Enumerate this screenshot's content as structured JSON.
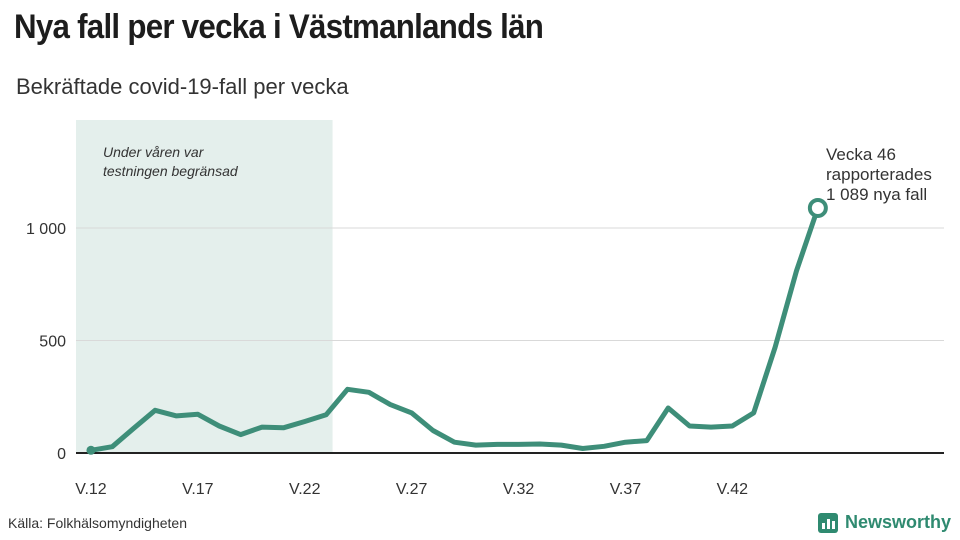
{
  "chart_data": {
    "type": "line",
    "title": "Nya fall per vecka i Västmanlands län",
    "subtitle": "Bekräftade covid-19-fall per vecka",
    "x": [
      12,
      13,
      14,
      15,
      16,
      17,
      18,
      19,
      20,
      21,
      22,
      23,
      24,
      25,
      26,
      27,
      28,
      29,
      30,
      31,
      32,
      33,
      34,
      35,
      36,
      37,
      38,
      39,
      40,
      41,
      42,
      43,
      44,
      45,
      46
    ],
    "series": [
      {
        "values": [
          12,
          28,
          110,
          190,
          165,
          172,
          120,
          82,
          115,
          112,
          140,
          170,
          283,
          270,
          215,
          178,
          100,
          48,
          35,
          38,
          38,
          40,
          35,
          20,
          30,
          48,
          55,
          200,
          120,
          115,
          120,
          178,
          470,
          810,
          1089
        ],
        "color": "#3e8e79"
      }
    ],
    "x_ticks": [
      12,
      17,
      22,
      27,
      32,
      37,
      42
    ],
    "x_tick_labels": [
      "V.12",
      "V.17",
      "V.22",
      "V.27",
      "V.32",
      "V.37",
      "V.42"
    ],
    "y_ticks": [
      0,
      500,
      1000
    ],
    "y_tick_labels": [
      "0",
      "500",
      "1 000"
    ],
    "xlim": [
      11.3,
      51.9
    ],
    "ylim": [
      0,
      1480
    ],
    "grid": true,
    "highlight_region": {
      "from": 11.3,
      "to": 23.3,
      "color": "#e4efec",
      "label_lines": [
        "Under våren var",
        "testningen begränsad"
      ]
    },
    "annotation": {
      "x": 46,
      "y": 1089,
      "lines": [
        "Vecka 46",
        "rapporterades",
        "1 089 nya fall"
      ]
    }
  },
  "footer": {
    "source": "Källa: Folkhälsomyndigheten",
    "brand": "Newsworthy",
    "brand_icon": "bar-chart-icon",
    "brand_color": "#2f8a70"
  }
}
